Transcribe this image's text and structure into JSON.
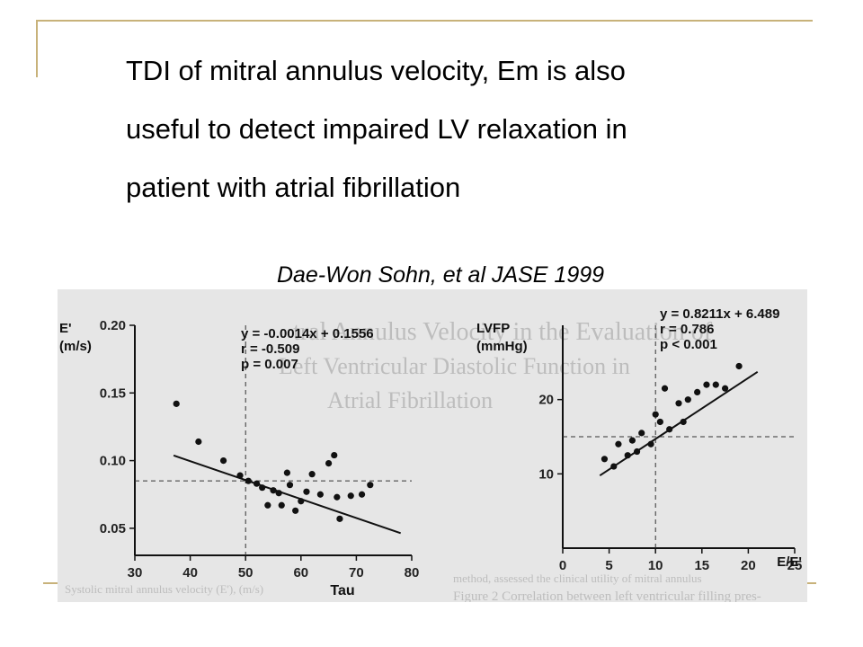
{
  "slide": {
    "title_lines": [
      "TDI of mitral annulus velocity, Em is also",
      "useful to detect impaired LV relaxation in",
      "patient with atrial fibrillation"
    ],
    "citation": "Dae-Won Sohn, et al  JASE 1999"
  },
  "chart_data": [
    {
      "type": "scatter",
      "ylabel_lines": [
        "E'",
        "(m/s)"
      ],
      "xlabel": "Tau",
      "xlim": [
        30,
        80
      ],
      "ylim": [
        0.03,
        0.2
      ],
      "x_ticks": [
        "30",
        "40",
        "50",
        "60",
        "70",
        "80"
      ],
      "y_ticks": [
        "0.20",
        "0.15",
        "0.10",
        "0.05"
      ],
      "annotation": [
        "y = -0.0014x + 0.1556",
        "r = -0.509",
        "p = 0.007"
      ],
      "regression": {
        "slope": -0.0014,
        "intercept": 0.1556,
        "x_range": [
          37,
          78
        ]
      },
      "cutoff_x": 50,
      "cutoff_y": 0.085,
      "points": [
        [
          37.5,
          0.142
        ],
        [
          41.5,
          0.114
        ],
        [
          46,
          0.1
        ],
        [
          49,
          0.089
        ],
        [
          50.5,
          0.085
        ],
        [
          52,
          0.083
        ],
        [
          53,
          0.08
        ],
        [
          54,
          0.067
        ],
        [
          55,
          0.078
        ],
        [
          56,
          0.076
        ],
        [
          56.5,
          0.067
        ],
        [
          57.5,
          0.091
        ],
        [
          58,
          0.082
        ],
        [
          59,
          0.063
        ],
        [
          60,
          0.07
        ],
        [
          61,
          0.077
        ],
        [
          62,
          0.09
        ],
        [
          63.5,
          0.075
        ],
        [
          65,
          0.098
        ],
        [
          66,
          0.104
        ],
        [
          66.5,
          0.073
        ],
        [
          67,
          0.057
        ],
        [
          69,
          0.074
        ],
        [
          71,
          0.075
        ],
        [
          72.5,
          0.082
        ]
      ]
    },
    {
      "type": "scatter",
      "ylabel_lines": [
        "LVFP",
        "(mmHg)"
      ],
      "xlabel": "E/E'",
      "xlim": [
        0,
        25
      ],
      "ylim": [
        0,
        30
      ],
      "x_ticks": [
        "0",
        "5",
        "10",
        "15",
        "20",
        "25"
      ],
      "y_ticks": [
        "10",
        "20"
      ],
      "annotation": [
        "y = 0.8211x + 6.489",
        "r = 0.786",
        "p < 0.001"
      ],
      "regression": {
        "slope": 0.8211,
        "intercept": 6.489,
        "x_range": [
          4,
          21
        ]
      },
      "cutoff_x": 10,
      "cutoff_y": 15,
      "points": [
        [
          4.5,
          12
        ],
        [
          5.5,
          11
        ],
        [
          6,
          14
        ],
        [
          7,
          12.5
        ],
        [
          7.5,
          14.5
        ],
        [
          8,
          13
        ],
        [
          8.5,
          15.5
        ],
        [
          9.5,
          14
        ],
        [
          10,
          18
        ],
        [
          10.5,
          17
        ],
        [
          11,
          21.5
        ],
        [
          11.5,
          16
        ],
        [
          12.5,
          19.5
        ],
        [
          13,
          17
        ],
        [
          13.5,
          20
        ],
        [
          14.5,
          21
        ],
        [
          15.5,
          22
        ],
        [
          16.5,
          22
        ],
        [
          17.5,
          21.5
        ],
        [
          19,
          24.5
        ]
      ]
    }
  ],
  "figure_text": {
    "ghost_header": [
      "tral Annulus Velocity in the Evaluation of",
      "Left Ventricular Diastolic Function in",
      "Atrial Fibrillation"
    ],
    "ghost_caption": "Figure 2 Correlation between left ventricular filling pres-",
    "ghost_left_caption": "Systolic mitral annulus velocity (E'), (m/s)",
    "ghost_right_note": "method, assessed the clinical utility of mitral annulus"
  }
}
